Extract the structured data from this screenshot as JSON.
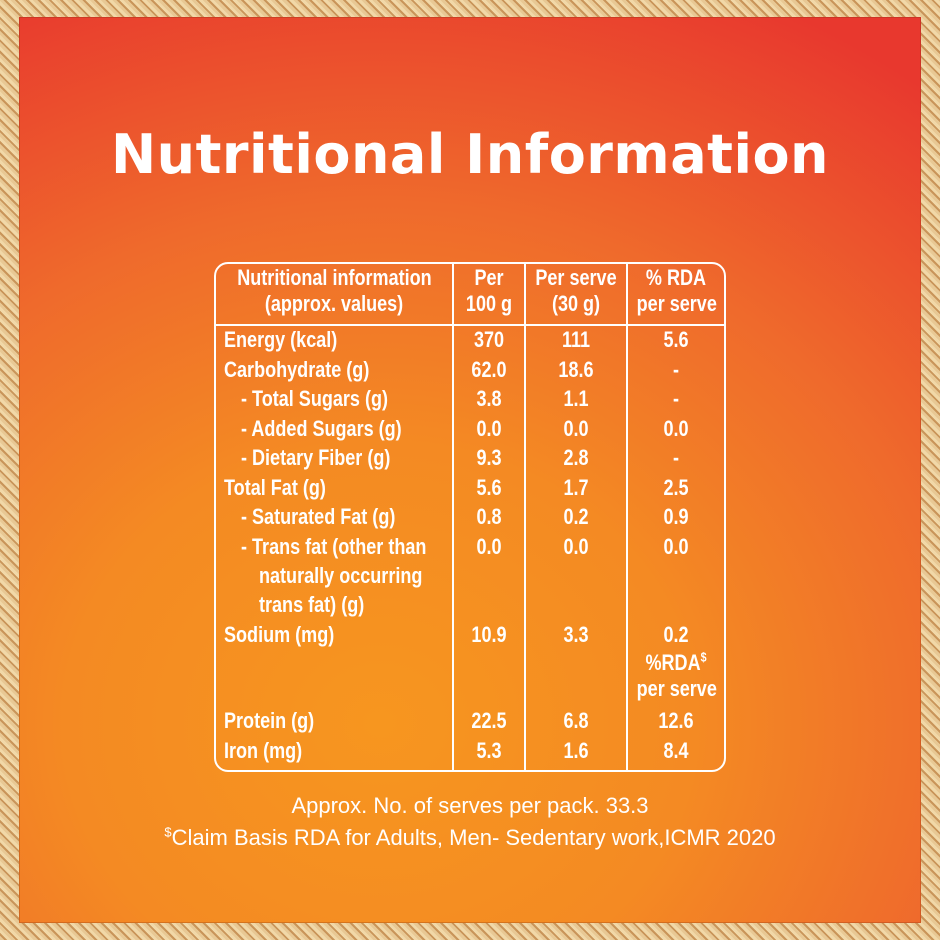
{
  "title": "Nutritional Information",
  "table": {
    "headers": [
      [
        "Nutritional information",
        "(approx. values)"
      ],
      [
        "Per",
        "100 g"
      ],
      [
        "Per serve",
        "(30 g)"
      ],
      [
        "% RDA",
        "per serve"
      ]
    ],
    "rows": [
      {
        "label": "Energy (kcal)",
        "per100": "370",
        "perServe": "111",
        "rda": "5.6"
      },
      {
        "label": "Carbohydrate (g)",
        "per100": "62.0",
        "perServe": "18.6",
        "rda": "-"
      },
      {
        "label": "- Total Sugars (g)",
        "per100": "3.8",
        "perServe": "1.1",
        "rda": "-"
      },
      {
        "label": "- Added Sugars (g)",
        "per100": "0.0",
        "perServe": "0.0",
        "rda": "0.0"
      },
      {
        "label": "- Dietary Fiber (g)",
        "per100": "9.3",
        "perServe": "2.8",
        "rda": "-"
      },
      {
        "label": "Total Fat (g)",
        "per100": "5.6",
        "perServe": "1.7",
        "rda": "2.5"
      },
      {
        "label": "- Saturated Fat (g)",
        "per100": "0.8",
        "perServe": "0.2",
        "rda": "0.9"
      },
      {
        "label": "- Trans fat (other than",
        "per100": "0.0",
        "perServe": "0.0",
        "rda": "0.0"
      },
      {
        "label": "naturally occurring",
        "per100": "",
        "perServe": "",
        "rda": ""
      },
      {
        "label": "trans fat) (g)",
        "per100": "",
        "perServe": "",
        "rda": ""
      },
      {
        "label": "Sodium (mg)",
        "per100": "10.9",
        "perServe": "3.3",
        "rda": "0.2"
      },
      {
        "label": "Protein (g)",
        "per100": "22.5",
        "perServe": "6.8",
        "rda": "12.6"
      },
      {
        "label": "Iron (mg)",
        "per100": "5.3",
        "perServe": "1.6",
        "rda": "8.4"
      }
    ],
    "subheader": {
      "line1": "%RDA",
      "sup": "$",
      "line2": "per serve"
    }
  },
  "footer": {
    "serves": "Approx. No. of serves per pack. 33.3",
    "claim_sup": "$",
    "claim": "Claim Basis RDA for Adults, Men- Sedentary work,ICMR 2020"
  },
  "colors": {
    "text": "#ffffff",
    "background_top": "#e8382e",
    "background_bottom": "#f7961f",
    "border": "#d9a86a"
  }
}
